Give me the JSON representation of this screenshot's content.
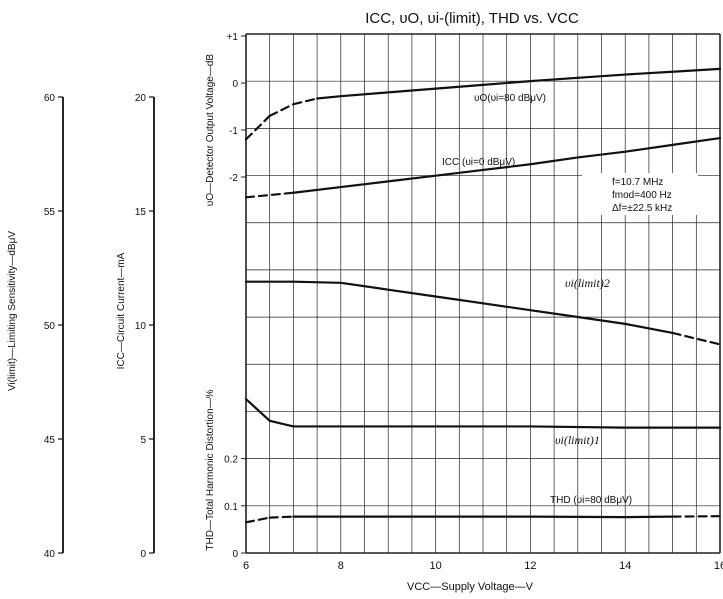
{
  "chart_data": {
    "type": "line",
    "title": "ICC, υO, υi-(limit), THD vs. VCC",
    "xlabel": "VCC—Supply Voltage—V",
    "x_ticks": [
      "6",
      "8",
      "10",
      "12",
      "14",
      "16"
    ],
    "xlim": [
      6,
      16
    ],
    "axes": [
      {
        "label": "Vi(limit)—Limiting Sensitivity—dBμV",
        "ticks": [
          "40",
          "45",
          "50",
          "55",
          "60"
        ],
        "range": [
          40,
          60
        ]
      },
      {
        "label": "ICC—Circuit Current—mA",
        "ticks": [
          "0",
          "5",
          "10",
          "15",
          "20"
        ],
        "range": [
          0,
          20
        ]
      },
      {
        "label": "υO—Detector Output Voltage—dB",
        "ticks": [
          "+1",
          "0",
          "-1",
          "-2"
        ],
        "range": [
          -2,
          1
        ]
      },
      {
        "label": "THD—Total Harmonic Distortion—%",
        "ticks": [
          "0",
          "0.1",
          "0.2"
        ],
        "range": [
          0,
          0.2
        ]
      }
    ],
    "conditions": [
      "f=10.7 MHz",
      "fmod=400 Hz",
      "Δf=±22.5 kHz"
    ],
    "grid": true,
    "series": [
      {
        "name": "υO(υi=80 dBμV)",
        "axis": "υO",
        "x": [
          6,
          6.5,
          7,
          7.5,
          8,
          9,
          10,
          11,
          12,
          13,
          14,
          15,
          16
        ],
        "y": [
          -1.2,
          -0.7,
          -0.45,
          -0.33,
          -0.28,
          -0.2,
          -0.12,
          -0.04,
          0.04,
          0.11,
          0.18,
          0.24,
          0.3
        ]
      },
      {
        "name": "ICC (υi=0 dBμV)",
        "axis": "ICC",
        "x": [
          6,
          7,
          8,
          9,
          10,
          11,
          12,
          13,
          14,
          15,
          16
        ],
        "y": [
          15.6,
          15.8,
          16.05,
          16.3,
          16.55,
          16.8,
          17.05,
          17.35,
          17.6,
          17.9,
          18.2
        ]
      },
      {
        "name": "υi(limit)2",
        "axis": "Vi(limit)",
        "x": [
          6,
          7,
          8,
          9,
          10,
          11,
          12,
          13,
          14,
          15,
          16
        ],
        "y": [
          51.9,
          51.9,
          51.85,
          51.55,
          51.25,
          50.95,
          50.65,
          50.35,
          50.05,
          49.65,
          49.15
        ]
      },
      {
        "name": "υi(limit)1",
        "axis": "Vi(limit)",
        "x": [
          6,
          6.5,
          7,
          8,
          9,
          10,
          12,
          14,
          16
        ],
        "y": [
          46.75,
          45.8,
          45.55,
          45.55,
          45.55,
          45.55,
          45.55,
          45.5,
          45.5
        ]
      },
      {
        "name": "THD (υi=80 dBμV)",
        "axis": "THD",
        "x": [
          6,
          6.5,
          7,
          8,
          10,
          12,
          14,
          15,
          16
        ],
        "y": [
          0.065,
          0.075,
          0.077,
          0.077,
          0.077,
          0.077,
          0.076,
          0.077,
          0.078
        ]
      }
    ]
  }
}
